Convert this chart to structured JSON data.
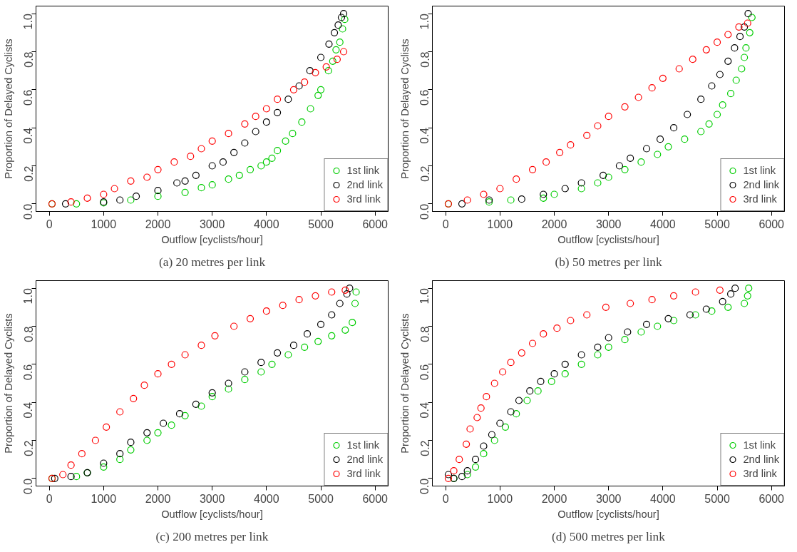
{
  "chart_data": [
    {
      "type": "scatter",
      "title": "(a) 20 metres per link",
      "xlabel": "Outflow [cyclists/hour]",
      "ylabel": "Proportion of Delayed Cyclists",
      "xlim": [
        -245,
        6240
      ],
      "ylim": [
        -0.04,
        1.04
      ],
      "xticks": [
        0,
        1000,
        2000,
        3000,
        4000,
        5000,
        6000
      ],
      "yticks": [
        {
          "value": 0,
          "label": "0.0"
        },
        {
          "value": 0.2,
          "label": "0.2"
        },
        {
          "value": 0.4,
          "label": "0.4"
        },
        {
          "value": 0.6,
          "label": "0.6"
        },
        {
          "value": 0.8,
          "label": "0.8"
        },
        {
          "value": 1,
          "label": "1.0"
        }
      ],
      "grid": false,
      "legend": "bottom right",
      "marker": "circle",
      "series": [
        {
          "name": "1st link",
          "color": "#00cd00",
          "x": [
            50,
            500,
            1000,
            1500,
            2000,
            2500,
            2800,
            3000,
            3300,
            3500,
            3700,
            3900,
            4000,
            4100,
            4200,
            4350,
            4480,
            4650,
            4810,
            4950,
            5000,
            5140,
            5220,
            5280,
            5350,
            5400,
            5440
          ],
          "values": [
            0,
            0,
            0.005,
            0.02,
            0.04,
            0.06,
            0.085,
            0.1,
            0.13,
            0.15,
            0.18,
            0.2,
            0.22,
            0.24,
            0.28,
            0.33,
            0.37,
            0.43,
            0.5,
            0.57,
            0.6,
            0.7,
            0.75,
            0.81,
            0.85,
            0.92,
            0.97
          ]
        },
        {
          "name": "2nd link",
          "color": "#000000",
          "x": [
            300,
            1000,
            1300,
            1600,
            2000,
            2350,
            2500,
            2700,
            3000,
            3200,
            3400,
            3600,
            3800,
            4000,
            4200,
            4400,
            4600,
            4800,
            5000,
            5150,
            5250,
            5320,
            5380,
            5420
          ],
          "values": [
            0,
            0.01,
            0.02,
            0.04,
            0.07,
            0.11,
            0.12,
            0.15,
            0.2,
            0.22,
            0.27,
            0.32,
            0.38,
            0.43,
            0.48,
            0.55,
            0.62,
            0.7,
            0.77,
            0.84,
            0.9,
            0.94,
            0.98,
            1.0
          ]
        },
        {
          "name": "3rd link",
          "color": "#ff0000",
          "x": [
            50,
            400,
            700,
            1000,
            1200,
            1500,
            1800,
            2000,
            2300,
            2600,
            2800,
            3000,
            3300,
            3600,
            3800,
            4000,
            4200,
            4500,
            4700,
            4900,
            5100,
            5300,
            5420
          ],
          "values": [
            0,
            0.01,
            0.03,
            0.05,
            0.08,
            0.12,
            0.14,
            0.18,
            0.22,
            0.25,
            0.29,
            0.33,
            0.37,
            0.42,
            0.46,
            0.5,
            0.55,
            0.6,
            0.64,
            0.69,
            0.72,
            0.76,
            0.8
          ]
        }
      ]
    },
    {
      "type": "scatter",
      "title": "(b) 50 metres per link",
      "xlabel": "Outflow [cyclists/hour]",
      "ylabel": "Proportion of Delayed Cyclists",
      "xlim": [
        -245,
        6240
      ],
      "ylim": [
        -0.04,
        1.04
      ],
      "xticks": [
        0,
        1000,
        2000,
        3000,
        4000,
        5000,
        6000
      ],
      "yticks": [
        {
          "value": 0,
          "label": "0.0"
        },
        {
          "value": 0.2,
          "label": "0.2"
        },
        {
          "value": 0.4,
          "label": "0.4"
        },
        {
          "value": 0.6,
          "label": "0.6"
        },
        {
          "value": 0.8,
          "label": "0.8"
        },
        {
          "value": 1,
          "label": "1.0"
        }
      ],
      "grid": false,
      "legend": "bottom right",
      "marker": "circle",
      "series": [
        {
          "name": "1st link",
          "color": "#00cd00",
          "x": [
            50,
            800,
            1200,
            1800,
            2000,
            2500,
            2800,
            3000,
            3300,
            3600,
            3900,
            4100,
            4400,
            4700,
            4850,
            5000,
            5100,
            5250,
            5350,
            5450,
            5500,
            5530,
            5600,
            5640
          ],
          "values": [
            0,
            0.01,
            0.02,
            0.03,
            0.05,
            0.08,
            0.11,
            0.14,
            0.18,
            0.22,
            0.26,
            0.3,
            0.34,
            0.38,
            0.42,
            0.47,
            0.52,
            0.58,
            0.65,
            0.71,
            0.77,
            0.82,
            0.9,
            0.98
          ]
        },
        {
          "name": "2nd link",
          "color": "#000000",
          "x": [
            300,
            800,
            1400,
            1800,
            2200,
            2500,
            2900,
            3200,
            3400,
            3700,
            3950,
            4200,
            4450,
            4700,
            4900,
            5050,
            5200,
            5320,
            5420,
            5500,
            5570
          ],
          "values": [
            0,
            0.02,
            0.025,
            0.05,
            0.08,
            0.11,
            0.15,
            0.2,
            0.24,
            0.29,
            0.34,
            0.4,
            0.47,
            0.55,
            0.62,
            0.68,
            0.75,
            0.82,
            0.88,
            0.93,
            1.0
          ]
        },
        {
          "name": "3rd link",
          "color": "#ff0000",
          "x": [
            50,
            400,
            700,
            1000,
            1300,
            1600,
            1850,
            2100,
            2300,
            2600,
            2800,
            3000,
            3300,
            3550,
            3800,
            4000,
            4300,
            4550,
            4800,
            5000,
            5200,
            5400,
            5560
          ],
          "values": [
            0,
            0.02,
            0.05,
            0.08,
            0.13,
            0.18,
            0.22,
            0.27,
            0.31,
            0.36,
            0.41,
            0.46,
            0.51,
            0.56,
            0.61,
            0.66,
            0.71,
            0.76,
            0.81,
            0.85,
            0.89,
            0.93,
            0.95
          ]
        }
      ]
    },
    {
      "type": "scatter",
      "title": "(c) 200 metres per link",
      "xlabel": "Outflow [cyclists/hour]",
      "ylabel": "Proportion of Delayed Cyclists",
      "xlim": [
        -245,
        6240
      ],
      "ylim": [
        -0.04,
        1.04
      ],
      "xticks": [
        0,
        1000,
        2000,
        3000,
        4000,
        5000,
        6000
      ],
      "yticks": [
        {
          "value": 0,
          "label": "0.0"
        },
        {
          "value": 0.2,
          "label": "0.2"
        },
        {
          "value": 0.4,
          "label": "0.4"
        },
        {
          "value": 0.6,
          "label": "0.6"
        },
        {
          "value": 0.8,
          "label": "0.8"
        },
        {
          "value": 1,
          "label": "1.0"
        }
      ],
      "grid": false,
      "legend": "bottom right",
      "marker": "circle",
      "series": [
        {
          "name": "1st link",
          "color": "#00cd00",
          "x": [
            50,
            500,
            700,
            1000,
            1300,
            1500,
            1800,
            2000,
            2250,
            2500,
            2800,
            3000,
            3300,
            3600,
            3900,
            4100,
            4400,
            4700,
            4950,
            5200,
            5450,
            5580,
            5630,
            5650
          ],
          "values": [
            0,
            0.01,
            0.03,
            0.06,
            0.1,
            0.15,
            0.2,
            0.24,
            0.28,
            0.33,
            0.38,
            0.43,
            0.47,
            0.52,
            0.56,
            0.6,
            0.65,
            0.69,
            0.72,
            0.75,
            0.78,
            0.82,
            0.92,
            0.98
          ]
        },
        {
          "name": "2nd link",
          "color": "#000000",
          "x": [
            100,
            400,
            700,
            1000,
            1300,
            1500,
            1800,
            2100,
            2400,
            2700,
            3000,
            3300,
            3600,
            3900,
            4200,
            4500,
            4750,
            5000,
            5200,
            5350,
            5480,
            5530
          ],
          "values": [
            0,
            0.01,
            0.03,
            0.08,
            0.13,
            0.19,
            0.24,
            0.29,
            0.34,
            0.39,
            0.45,
            0.5,
            0.56,
            0.61,
            0.66,
            0.7,
            0.76,
            0.81,
            0.86,
            0.92,
            0.97,
            1.0
          ]
        },
        {
          "name": "3rd link",
          "color": "#ff0000",
          "x": [
            50,
            250,
            400,
            600,
            850,
            1050,
            1300,
            1550,
            1750,
            2000,
            2250,
            2500,
            2800,
            3050,
            3400,
            3700,
            4000,
            4300,
            4600,
            4900,
            5200,
            5450
          ],
          "values": [
            0,
            0.02,
            0.07,
            0.13,
            0.2,
            0.27,
            0.35,
            0.42,
            0.49,
            0.55,
            0.6,
            0.65,
            0.7,
            0.75,
            0.8,
            0.84,
            0.88,
            0.91,
            0.94,
            0.96,
            0.98,
            0.99
          ]
        }
      ]
    },
    {
      "type": "scatter",
      "title": "(d) 500 metres per link",
      "xlabel": "Outflow [cyclists/hour]",
      "ylabel": "Proportion of Delayed Cyclists",
      "xlim": [
        -245,
        6240
      ],
      "ylim": [
        -0.04,
        1.04
      ],
      "xticks": [
        0,
        1000,
        2000,
        3000,
        4000,
        5000,
        6000
      ],
      "yticks": [
        {
          "value": 0,
          "label": "0.0"
        },
        {
          "value": 0.2,
          "label": "0.2"
        },
        {
          "value": 0.4,
          "label": "0.4"
        },
        {
          "value": 0.6,
          "label": "0.6"
        },
        {
          "value": 0.8,
          "label": "0.8"
        },
        {
          "value": 1,
          "label": "1.0"
        }
      ],
      "grid": false,
      "legend": "bottom right",
      "marker": "circle",
      "series": [
        {
          "name": "1st link",
          "color": "#00cd00",
          "x": [
            150,
            400,
            550,
            700,
            900,
            1100,
            1300,
            1500,
            1700,
            1950,
            2200,
            2500,
            2800,
            3000,
            3300,
            3600,
            3900,
            4200,
            4600,
            4900,
            5200,
            5500,
            5560,
            5580
          ],
          "values": [
            0,
            0.02,
            0.06,
            0.13,
            0.2,
            0.27,
            0.34,
            0.41,
            0.46,
            0.51,
            0.55,
            0.6,
            0.65,
            0.69,
            0.73,
            0.77,
            0.8,
            0.83,
            0.86,
            0.88,
            0.9,
            0.92,
            0.96,
            1.0
          ]
        },
        {
          "name": "2nd link",
          "color": "#000000",
          "x": [
            50,
            150,
            300,
            400,
            550,
            700,
            850,
            1000,
            1200,
            1350,
            1550,
            1750,
            2000,
            2200,
            2500,
            2800,
            3000,
            3350,
            3700,
            4100,
            4500,
            4800,
            5100,
            5250,
            5330
          ],
          "values": [
            0.02,
            0,
            0.01,
            0.04,
            0.1,
            0.17,
            0.23,
            0.29,
            0.35,
            0.41,
            0.46,
            0.51,
            0.55,
            0.6,
            0.65,
            0.69,
            0.74,
            0.77,
            0.81,
            0.84,
            0.86,
            0.89,
            0.93,
            0.97,
            1.0
          ]
        },
        {
          "name": "3rd link",
          "color": "#ff0000",
          "x": [
            50,
            150,
            250,
            380,
            450,
            580,
            650,
            750,
            900,
            1050,
            1200,
            1400,
            1600,
            1800,
            2050,
            2300,
            2600,
            2950,
            3400,
            3800,
            4200,
            4600,
            5050
          ],
          "values": [
            0,
            0.04,
            0.1,
            0.18,
            0.26,
            0.32,
            0.37,
            0.43,
            0.5,
            0.56,
            0.61,
            0.66,
            0.71,
            0.76,
            0.79,
            0.83,
            0.86,
            0.9,
            0.92,
            0.94,
            0.96,
            0.98,
            0.99
          ]
        }
      ]
    }
  ]
}
